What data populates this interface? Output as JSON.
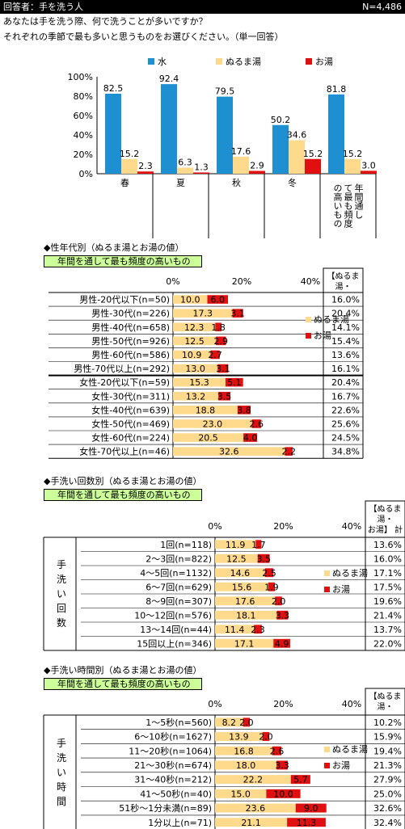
{
  "header": {
    "respondent": "回答者：手を洗う人",
    "n": "N=4,486"
  },
  "question": {
    "line1": "あなたは手を洗う際、何で洗うことが多いですか？",
    "line2": "それぞれの季節で最も多いと思うものをお選びください。（単一回答）"
  },
  "colors": {
    "water": "#1E8FD0",
    "lukewarm": "#FFD98C",
    "hot": "#E01010",
    "green": "#CCFF99"
  },
  "chart_data": [
    {
      "type": "bar",
      "categories": [
        "春",
        "夏",
        "秋",
        "冬",
        "年間通して最も頻度の高いもの"
      ],
      "series": [
        {
          "name": "水",
          "values": [
            82.5,
            92.4,
            79.5,
            50.2,
            81.8
          ]
        },
        {
          "name": "ぬるま湯",
          "values": [
            15.2,
            6.3,
            17.6,
            34.6,
            15.2
          ]
        },
        {
          "name": "お湯",
          "values": [
            2.3,
            1.3,
            2.9,
            15.2,
            3.0
          ]
        }
      ],
      "y_ticks": [
        "100%",
        "80%",
        "60%",
        "40%",
        "20%",
        "0%"
      ],
      "ylim": [
        0,
        100
      ]
    },
    {
      "type": "bar",
      "title": "◆性年代別（ぬるま湯とお湯の値）",
      "subtitle": "年間を通して最も頻度の高いもの",
      "x_ticks": [
        "0%",
        "20%",
        "40%"
      ],
      "xlim": [
        0,
        40
      ],
      "total_header": [
        "【ぬるま",
        "湯・"
      ],
      "legend": [
        "ぬるま湯",
        "お湯"
      ],
      "rows": [
        {
          "label": "男性-20代以下(n=50)",
          "lukewarm": 10.0,
          "hot": 6.0,
          "total": "16.0%"
        },
        {
          "label": "男性-30代(n=226)",
          "lukewarm": 17.3,
          "hot": 3.1,
          "total": "20.4%"
        },
        {
          "label": "男性-40代(n=658)",
          "lukewarm": 12.3,
          "hot": 1.8,
          "total": "14.1%"
        },
        {
          "label": "男性-50代(n=926)",
          "lukewarm": 12.5,
          "hot": 2.9,
          "total": "15.4%"
        },
        {
          "label": "男性-60代(n=586)",
          "lukewarm": 10.9,
          "hot": 2.7,
          "total": "13.6%"
        },
        {
          "label": "男性-70代以上(n=292)",
          "lukewarm": 13.0,
          "hot": 3.1,
          "total": "16.1%"
        },
        {
          "label": "女性-20代以下(n=59)",
          "lukewarm": 15.3,
          "hot": 5.1,
          "total": "20.4%"
        },
        {
          "label": "女性-30代(n=311)",
          "lukewarm": 13.2,
          "hot": 3.5,
          "total": "16.7%"
        },
        {
          "label": "女性-40代(n=639)",
          "lukewarm": 18.8,
          "hot": 3.8,
          "total": "22.6%"
        },
        {
          "label": "女性-50代(n=469)",
          "lukewarm": 23.0,
          "hot": 2.6,
          "total": "25.6%"
        },
        {
          "label": "女性-60代(n=224)",
          "lukewarm": 20.5,
          "hot": 4.0,
          "total": "24.5%"
        },
        {
          "label": "女性-70代以上(n=46)",
          "lukewarm": 32.6,
          "hot": 2.2,
          "total": "34.8%"
        }
      ]
    },
    {
      "type": "bar",
      "title": "◆手洗い回数別（ぬるま湯とお湯の値）",
      "subtitle": "年間を通して最も頻度の高いもの",
      "group_label": "手洗い回数",
      "x_ticks": [
        "0%",
        "20%",
        "40%"
      ],
      "xlim": [
        0,
        40
      ],
      "total_header": [
        "【ぬるま",
        "湯・",
        "お湯】 計"
      ],
      "legend": [
        "ぬるま湯",
        "お湯"
      ],
      "rows": [
        {
          "label": "1回(n=118)",
          "lukewarm": 11.9,
          "hot": 1.7,
          "total": "13.6%"
        },
        {
          "label": "2～3回(n=822)",
          "lukewarm": 12.5,
          "hot": 3.5,
          "total": "16.0%"
        },
        {
          "label": "4～5回(n=1132)",
          "lukewarm": 14.6,
          "hot": 2.5,
          "total": "17.1%"
        },
        {
          "label": "6～7回(n=629)",
          "lukewarm": 15.6,
          "hot": 1.9,
          "total": "17.5%"
        },
        {
          "label": "8～9回(n=307)",
          "lukewarm": 17.6,
          "hot": 2.0,
          "total": "19.6%"
        },
        {
          "label": "10～12回(n=576)",
          "lukewarm": 18.1,
          "hot": 3.3,
          "total": "21.4%"
        },
        {
          "label": "13～14回(n=44)",
          "lukewarm": 11.4,
          "hot": 2.3,
          "total": "13.7%"
        },
        {
          "label": "15回以上(n=346)",
          "lukewarm": 17.1,
          "hot": 4.9,
          "total": "22.0%"
        }
      ]
    },
    {
      "type": "bar",
      "title": "◆手洗い時間別（ぬるま湯とお湯の値）",
      "subtitle": "年間を通して最も頻度の高いもの",
      "group_label": "手洗い時間",
      "x_ticks": [
        "0%",
        "20%",
        "40%"
      ],
      "xlim": [
        0,
        40
      ],
      "total_header": [
        "【ぬるま",
        "湯・"
      ],
      "legend": [
        "ぬるま湯",
        "お湯"
      ],
      "rows": [
        {
          "label": "1～5秒(n=560)",
          "lukewarm": 8.2,
          "hot": 2.0,
          "total": "10.2%"
        },
        {
          "label": "6～10秒(n=1627)",
          "lukewarm": 13.9,
          "hot": 2.0,
          "total": "15.9%"
        },
        {
          "label": "11～20秒(n=1064)",
          "lukewarm": 16.8,
          "hot": 2.6,
          "total": "19.4%"
        },
        {
          "label": "21～30秒(n=674)",
          "lukewarm": 18.0,
          "hot": 3.3,
          "total": "21.3%"
        },
        {
          "label": "31～40秒(n=212)",
          "lukewarm": 22.2,
          "hot": 5.7,
          "total": "27.9%"
        },
        {
          "label": "41～50秒(n=40)",
          "lukewarm": 15.0,
          "hot": 10.0,
          "total": "25.0%"
        },
        {
          "label": "51秒～1分未満(n=89)",
          "lukewarm": 23.6,
          "hot": 9.0,
          "total": "32.6%"
        },
        {
          "label": "1分以上(n=71)",
          "lukewarm": 21.1,
          "hot": 11.3,
          "total": "32.4%"
        }
      ]
    }
  ]
}
